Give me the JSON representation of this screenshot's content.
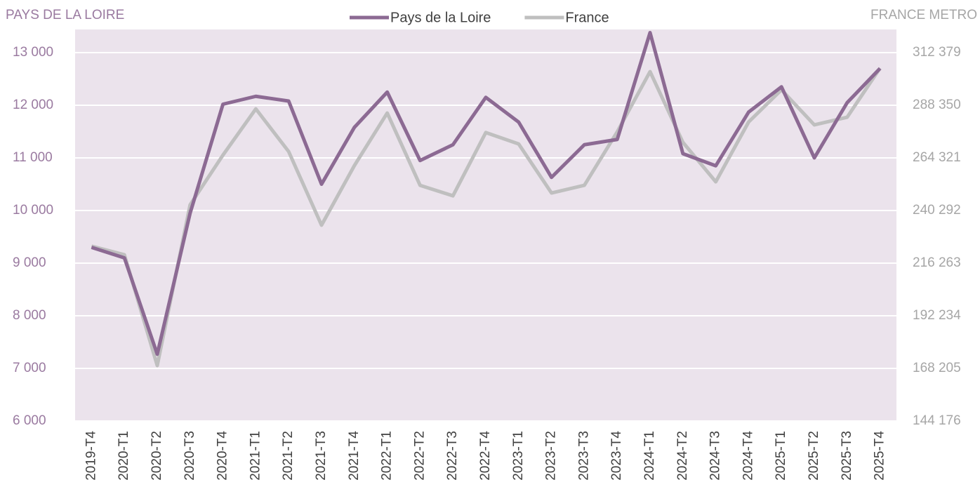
{
  "chart_data": {
    "type": "line",
    "y_label": "PAYS DE LA LOIRE",
    "y2_label": "FRANCE METRO",
    "categories": [
      "2019-T4",
      "2020-T1",
      "2020-T2",
      "2020-T3",
      "2020-T4",
      "2021-T1",
      "2021-T2",
      "2021-T3",
      "2021-T4",
      "2022-T1",
      "2022-T2",
      "2022-T3",
      "2022-T4",
      "2023-T1",
      "2023-T2",
      "2023-T3",
      "2023-T4",
      "2024-T1",
      "2024-T2",
      "2024-T3",
      "2024-T4",
      "2025-T1",
      "2025-T2",
      "2025-T3",
      "2025-T4"
    ],
    "series": [
      {
        "name": "Pays de la Loire",
        "color": "#8c6a93",
        "axis": "y",
        "values": [
          9300,
          9100,
          7270,
          9950,
          12020,
          12170,
          12080,
          10500,
          11580,
          12250,
          10950,
          11250,
          12150,
          11680,
          10630,
          11250,
          11350,
          13380,
          11080,
          10850,
          11870,
          12350,
          11000,
          12050,
          12700
        ]
      },
      {
        "name": "France",
        "color": "#bfbfbf",
        "axis": "y2",
        "values": [
          224000,
          220100,
          169500,
          242900,
          265600,
          286700,
          267200,
          233600,
          260800,
          284800,
          251800,
          247000,
          275900,
          270700,
          248300,
          251800,
          276200,
          303700,
          271400,
          253400,
          280700,
          295400,
          279400,
          282900,
          305300
        ]
      }
    ],
    "ylim": [
      6000,
      13440
    ],
    "yticks": [
      {
        "value": 6000,
        "label": "6 000"
      },
      {
        "value": 7000,
        "label": "7 000"
      },
      {
        "value": 8000,
        "label": "8 000"
      },
      {
        "value": 9000,
        "label": "9 000"
      },
      {
        "value": 10000,
        "label": "10 000"
      },
      {
        "value": 11000,
        "label": "11 000"
      },
      {
        "value": 12000,
        "label": "12 000"
      },
      {
        "value": 13000,
        "label": "13 000"
      }
    ],
    "y2lim": [
      144176,
      322952
    ],
    "y2ticks": [
      {
        "value": 144176,
        "label": "144 176"
      },
      {
        "value": 168205,
        "label": "168 205"
      },
      {
        "value": 192234,
        "label": "192 234"
      },
      {
        "value": 216263,
        "label": "216 263"
      },
      {
        "value": 240292,
        "label": "240 292"
      },
      {
        "value": 264321,
        "label": "264 321"
      },
      {
        "value": 288350,
        "label": "288 350"
      },
      {
        "value": 312379,
        "label": "312 379"
      }
    ],
    "grid": true,
    "legend": "top",
    "background": "#ebe3ec"
  }
}
